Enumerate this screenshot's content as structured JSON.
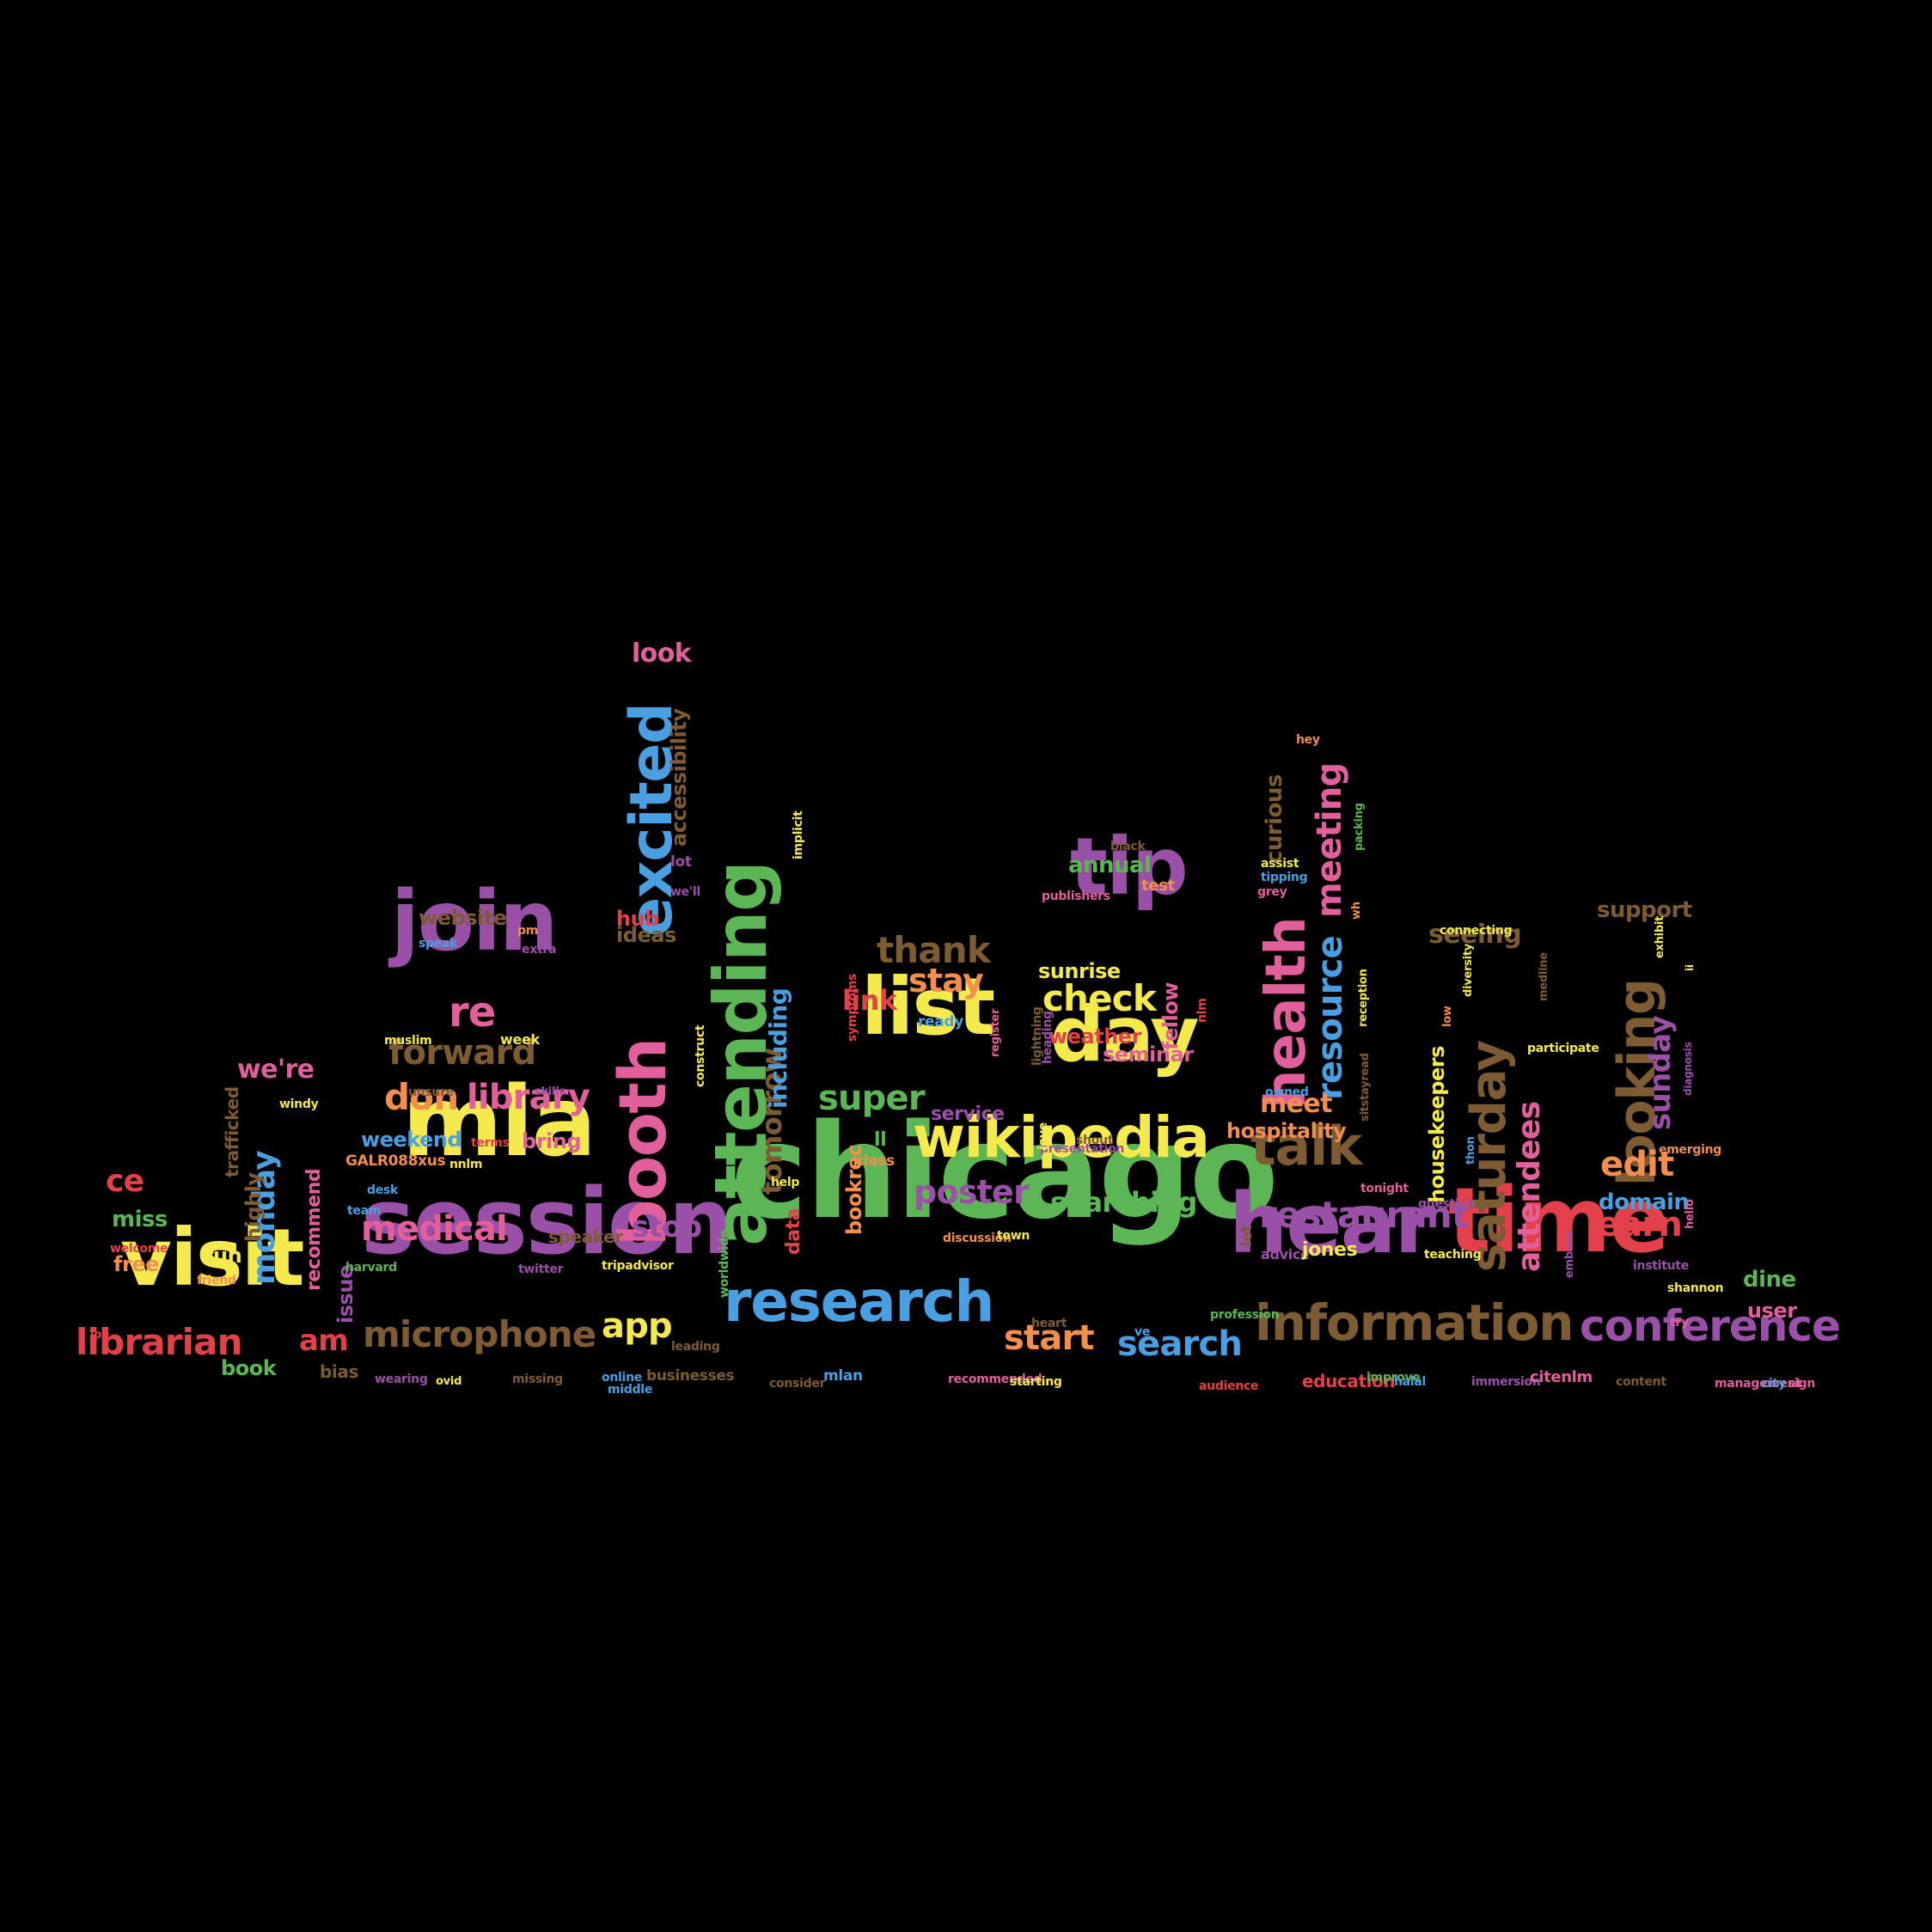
{
  "palette": {
    "background": "#000000",
    "R": "#e24149",
    "G": "#5db656",
    "B": "#4a9fe1",
    "Y": "#f4ea4e",
    "P": "#9b50a8",
    "K": "#e1609b",
    "O": "#f28f4e",
    "N": "#7d5b33"
  },
  "words": [
    {
      "t": "chicago",
      "c": "G"
    },
    {
      "t": "session",
      "c": "P"
    },
    {
      "t": "mla",
      "c": "Y"
    },
    {
      "t": "visit",
      "c": "Y"
    },
    {
      "t": "hear",
      "c": "P"
    },
    {
      "t": "time",
      "c": "R"
    },
    {
      "t": "booth",
      "c": "K"
    },
    {
      "t": "attending",
      "c": "G"
    },
    {
      "t": "excited",
      "c": "B"
    },
    {
      "t": "join",
      "c": "P"
    },
    {
      "t": "tip",
      "c": "P"
    },
    {
      "t": "day",
      "c": "Y"
    },
    {
      "t": "list",
      "c": "Y"
    },
    {
      "t": "wikipedia",
      "c": "Y"
    },
    {
      "t": "research",
      "c": "B"
    },
    {
      "t": "information",
      "c": "N"
    },
    {
      "t": "conference",
      "c": "P"
    },
    {
      "t": "health",
      "c": "K"
    },
    {
      "t": "looking",
      "c": "N"
    },
    {
      "t": "saturday",
      "c": "N"
    },
    {
      "t": "talk",
      "c": "N"
    },
    {
      "t": "restaurant",
      "c": "P"
    },
    {
      "t": "librarian",
      "c": "R"
    },
    {
      "t": "microphone",
      "c": "N"
    },
    {
      "t": "medical",
      "c": "K"
    },
    {
      "t": "forward",
      "c": "N"
    },
    {
      "t": "library",
      "c": "K"
    },
    {
      "t": "re",
      "c": "K"
    },
    {
      "t": "don",
      "c": "O"
    },
    {
      "t": "monday",
      "c": "B"
    },
    {
      "t": "tomorrow",
      "c": "N"
    },
    {
      "t": "including",
      "c": "B"
    },
    {
      "t": "accessibility",
      "c": "N"
    },
    {
      "t": "look",
      "c": "K"
    },
    {
      "t": "meeting",
      "c": "K"
    },
    {
      "t": "resource",
      "c": "B"
    },
    {
      "t": "curious",
      "c": "N"
    },
    {
      "t": "attendees",
      "c": "K"
    },
    {
      "t": "sunday",
      "c": "P"
    },
    {
      "t": "housekeepers",
      "c": "Y"
    },
    {
      "t": "learn",
      "c": "R"
    },
    {
      "t": "edit",
      "c": "O"
    },
    {
      "t": "domain",
      "c": "B"
    },
    {
      "t": "search",
      "c": "B"
    },
    {
      "t": "start",
      "c": "O"
    },
    {
      "t": "app",
      "c": "Y"
    },
    {
      "t": "stop",
      "c": "P"
    },
    {
      "t": "poster",
      "c": "P"
    },
    {
      "t": "searching",
      "c": "G"
    },
    {
      "t": "super",
      "c": "G"
    },
    {
      "t": "check",
      "c": "Y"
    },
    {
      "t": "thank",
      "c": "N"
    },
    {
      "t": "stay",
      "c": "O"
    },
    {
      "t": "link",
      "c": "R"
    },
    {
      "t": "annual",
      "c": "G"
    },
    {
      "t": "sunrise",
      "c": "Y"
    },
    {
      "t": "weather",
      "c": "R"
    },
    {
      "t": "seminar",
      "c": "K"
    },
    {
      "t": "fellow",
      "c": "K"
    },
    {
      "t": "meet",
      "c": "O"
    },
    {
      "t": "hospitality",
      "c": "O"
    },
    {
      "t": "seeing",
      "c": "N"
    },
    {
      "t": "support",
      "c": "N"
    },
    {
      "t": "dine",
      "c": "G"
    },
    {
      "t": "user",
      "c": "K"
    },
    {
      "t": "ce",
      "c": "R"
    },
    {
      "t": "miss",
      "c": "G"
    },
    {
      "t": "welcome",
      "c": "R"
    },
    {
      "t": "free",
      "c": "O"
    },
    {
      "t": "fun",
      "c": "Y"
    },
    {
      "t": "friend",
      "c": "O"
    },
    {
      "t": "job",
      "c": "R"
    },
    {
      "t": "book",
      "c": "G"
    },
    {
      "t": "am",
      "c": "R"
    },
    {
      "t": "bias",
      "c": "N"
    },
    {
      "t": "wearing",
      "c": "P"
    },
    {
      "t": "ovid",
      "c": "Y"
    },
    {
      "t": "missing",
      "c": "N"
    },
    {
      "t": "issue",
      "c": "P"
    },
    {
      "t": "highly",
      "c": "N"
    },
    {
      "t": "trafficked",
      "c": "N"
    },
    {
      "t": "recommend",
      "c": "K"
    },
    {
      "t": "we're",
      "c": "K"
    },
    {
      "t": "windy",
      "c": "Y"
    },
    {
      "t": "website",
      "c": "N"
    },
    {
      "t": "speak",
      "c": "B"
    },
    {
      "t": "pm",
      "c": "O"
    },
    {
      "t": "extra",
      "c": "P"
    },
    {
      "t": "muslim",
      "c": "Y"
    },
    {
      "t": "week",
      "c": "Y"
    },
    {
      "t": "unsure",
      "c": "N"
    },
    {
      "t": "skills",
      "c": "P"
    },
    {
      "t": "weekend",
      "c": "B"
    },
    {
      "t": "terms",
      "c": "R"
    },
    {
      "t": "bring",
      "c": "K"
    },
    {
      "t": "GALR088xus",
      "c": "O"
    },
    {
      "t": "nnlm",
      "c": "Y"
    },
    {
      "t": "desk",
      "c": "B"
    },
    {
      "t": "team",
      "c": "B"
    },
    {
      "t": "harvard",
      "c": "G"
    },
    {
      "t": "twitter",
      "c": "P"
    },
    {
      "t": "speaker",
      "c": "N"
    },
    {
      "t": "tripadvisor",
      "c": "Y"
    },
    {
      "t": "worldwide",
      "c": "G"
    },
    {
      "t": "leading",
      "c": "N"
    },
    {
      "t": "online",
      "c": "B"
    },
    {
      "t": "middle",
      "c": "B"
    },
    {
      "t": "businesses",
      "c": "N"
    },
    {
      "t": "hub",
      "c": "R"
    },
    {
      "t": "ideas",
      "c": "N"
    },
    {
      "t": "lot",
      "c": "P"
    },
    {
      "t": "we'll",
      "c": "P"
    },
    {
      "t": "implicit",
      "c": "Y"
    },
    {
      "t": "construct",
      "c": "Y"
    },
    {
      "t": "help",
      "c": "Y"
    },
    {
      "t": "data",
      "c": "R"
    },
    {
      "t": "bookrec",
      "c": "O"
    },
    {
      "t": "symptoms",
      "c": "R"
    },
    {
      "t": "class",
      "c": "O"
    },
    {
      "t": "ll",
      "c": "G"
    },
    {
      "t": "service",
      "c": "P"
    },
    {
      "t": "ready",
      "c": "B"
    },
    {
      "t": "register",
      "c": "K"
    },
    {
      "t": "consider",
      "c": "N"
    },
    {
      "t": "mlan",
      "c": "B"
    },
    {
      "t": "recommended",
      "c": "K"
    },
    {
      "t": "starting",
      "c": "Y"
    },
    {
      "t": "discussion",
      "c": "O"
    },
    {
      "t": "town",
      "c": "Y"
    },
    {
      "t": "heart",
      "c": "N"
    },
    {
      "t": "ve",
      "c": "B"
    },
    {
      "t": "presentation",
      "c": "P"
    },
    {
      "t": "shout",
      "c": "N"
    },
    {
      "t": "jove",
      "c": "Y"
    },
    {
      "t": "lightning",
      "c": "N"
    },
    {
      "t": "heading",
      "c": "P"
    },
    {
      "t": "publishers",
      "c": "K"
    },
    {
      "t": "test",
      "c": "O"
    },
    {
      "t": "black",
      "c": "N"
    },
    {
      "t": "nlm",
      "c": "R"
    },
    {
      "t": "profession",
      "c": "G"
    },
    {
      "t": "let",
      "c": "N"
    },
    {
      "t": "advice",
      "c": "P"
    },
    {
      "t": "jones",
      "c": "Y"
    },
    {
      "t": "audience",
      "c": "R"
    },
    {
      "t": "education",
      "c": "R"
    },
    {
      "t": "owned",
      "c": "B"
    },
    {
      "t": "tonight",
      "c": "K"
    },
    {
      "t": "hey",
      "c": "O"
    },
    {
      "t": "assist",
      "c": "Y"
    },
    {
      "t": "tipping",
      "c": "B"
    },
    {
      "t": "grey",
      "c": "K"
    },
    {
      "t": "wh",
      "c": "O"
    },
    {
      "t": "packing",
      "c": "G"
    },
    {
      "t": "reception",
      "c": "Y"
    },
    {
      "t": "sitstayread",
      "c": "N"
    },
    {
      "t": "connecting",
      "c": "Y"
    },
    {
      "t": "low",
      "c": "O"
    },
    {
      "t": "diversity",
      "c": "Y"
    },
    {
      "t": "medline",
      "c": "N"
    },
    {
      "t": "participate",
      "c": "Y"
    },
    {
      "t": "thon",
      "c": "B"
    },
    {
      "t": "question",
      "c": "P"
    },
    {
      "t": "teaching",
      "c": "Y"
    },
    {
      "t": "embase",
      "c": "P"
    },
    {
      "t": "improve",
      "c": "G"
    },
    {
      "t": "halal",
      "c": "B"
    },
    {
      "t": "immersion",
      "c": "P"
    },
    {
      "t": "citenlm",
      "c": "K"
    },
    {
      "t": "exhibit",
      "c": "Y"
    },
    {
      "t": "ii",
      "c": "Y"
    },
    {
      "t": "diagnosis",
      "c": "P"
    },
    {
      "t": "emerging",
      "c": "O"
    },
    {
      "t": "hello",
      "c": "K"
    },
    {
      "t": "institute",
      "c": "P"
    },
    {
      "t": "shannon",
      "c": "Y"
    },
    {
      "t": "try",
      "c": "K"
    },
    {
      "t": "content",
      "c": "N"
    },
    {
      "t": "management",
      "c": "K"
    },
    {
      "t": "city",
      "c": "B"
    },
    {
      "t": "sign",
      "c": "K"
    },
    {
      "t": "amazing",
      "c": "B"
    }
  ]
}
